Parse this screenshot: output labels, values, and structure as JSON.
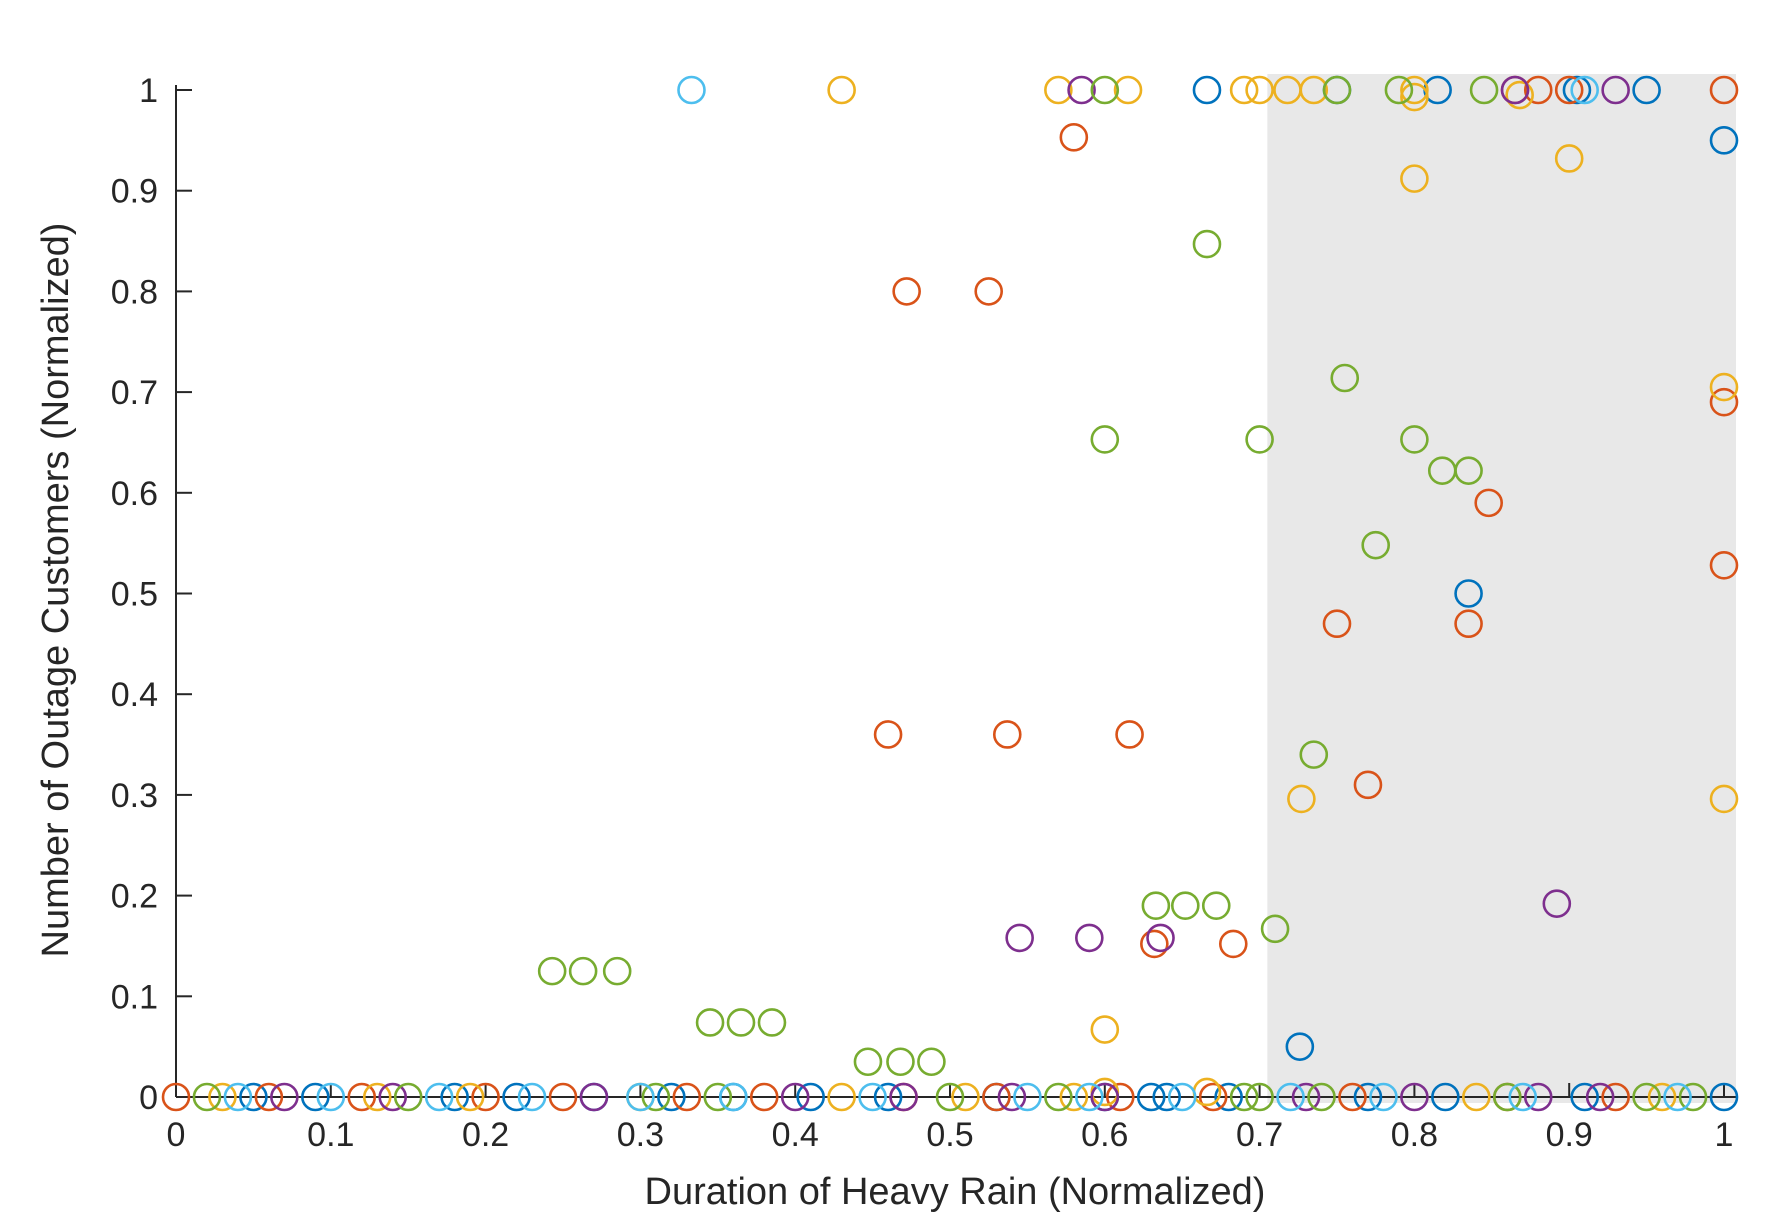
{
  "chart_data": {
    "type": "scatter",
    "title": "",
    "xlabel": "Duration of Heavy Rain (Normalized)",
    "ylabel": "Number of Outage Customers (Normalized)",
    "xlim": [
      0,
      1
    ],
    "ylim": [
      0,
      1
    ],
    "x_ticks": [
      "0",
      "0.1",
      "0.2",
      "0.3",
      "0.4",
      "0.5",
      "0.6",
      "0.7",
      "0.8",
      "0.9",
      "1"
    ],
    "y_ticks": [
      "0",
      "0.1",
      "0.2",
      "0.3",
      "0.4",
      "0.5",
      "0.6",
      "0.7",
      "0.8",
      "0.9",
      "1"
    ],
    "grid": false,
    "marker": "open-circle",
    "highlighted_x_range": [
      0.705,
      1.0
    ],
    "highlight_color": "#e8e8e8",
    "series": [
      {
        "color": "#0072BD",
        "points": [
          [
            0.05,
            0
          ],
          [
            0.09,
            0
          ],
          [
            0.18,
            0
          ],
          [
            0.22,
            0
          ],
          [
            0.27,
            0
          ],
          [
            0.32,
            0
          ],
          [
            0.36,
            0
          ],
          [
            0.41,
            0
          ],
          [
            0.46,
            0
          ],
          [
            0.53,
            0
          ],
          [
            0.6,
            0
          ],
          [
            0.63,
            0
          ],
          [
            0.64,
            0
          ],
          [
            0.68,
            0
          ],
          [
            0.77,
            0
          ],
          [
            0.82,
            0
          ],
          [
            0.91,
            0
          ],
          [
            1.0,
            0
          ],
          [
            0.666,
            1
          ],
          [
            0.75,
            1
          ],
          [
            0.815,
            1
          ],
          [
            0.905,
            1
          ],
          [
            0.95,
            1
          ],
          [
            1.0,
            0.95
          ],
          [
            0.835,
            0.5
          ],
          [
            0.726,
            0.05
          ]
        ]
      },
      {
        "color": "#D95319",
        "points": [
          [
            0.0,
            0
          ],
          [
            0.06,
            0
          ],
          [
            0.12,
            0
          ],
          [
            0.2,
            0
          ],
          [
            0.25,
            0
          ],
          [
            0.33,
            0
          ],
          [
            0.38,
            0
          ],
          [
            0.47,
            0
          ],
          [
            0.53,
            0
          ],
          [
            0.61,
            0
          ],
          [
            0.67,
            0
          ],
          [
            0.76,
            0
          ],
          [
            0.86,
            0
          ],
          [
            0.93,
            0
          ],
          [
            0.865,
            1
          ],
          [
            0.88,
            1
          ],
          [
            0.9,
            1
          ],
          [
            1.0,
            1
          ],
          [
            0.58,
            0.953
          ],
          [
            0.472,
            0.8
          ],
          [
            0.525,
            0.8
          ],
          [
            1.0,
            0.69
          ],
          [
            0.848,
            0.59
          ],
          [
            1.0,
            0.528
          ],
          [
            0.75,
            0.47
          ],
          [
            0.835,
            0.47
          ],
          [
            0.46,
            0.36
          ],
          [
            0.537,
            0.36
          ],
          [
            0.616,
            0.36
          ],
          [
            0.77,
            0.31
          ],
          [
            0.632,
            0.152
          ],
          [
            0.683,
            0.152
          ]
        ]
      },
      {
        "color": "#EDB120",
        "points": [
          [
            0.03,
            0
          ],
          [
            0.13,
            0
          ],
          [
            0.19,
            0
          ],
          [
            0.3,
            0
          ],
          [
            0.43,
            0
          ],
          [
            0.51,
            0
          ],
          [
            0.58,
            0
          ],
          [
            0.6,
            0.005
          ],
          [
            0.666,
            0.005
          ],
          [
            0.84,
            0
          ],
          [
            0.96,
            0
          ],
          [
            0.43,
            1
          ],
          [
            0.57,
            1
          ],
          [
            0.615,
            1
          ],
          [
            0.69,
            1
          ],
          [
            0.7,
            1
          ],
          [
            0.718,
            1
          ],
          [
            0.735,
            1
          ],
          [
            0.8,
            1
          ],
          [
            0.8,
            0.993
          ],
          [
            0.868,
            0.995
          ],
          [
            0.9,
            0.932
          ],
          [
            0.8,
            0.912
          ],
          [
            1.0,
            0.705
          ],
          [
            0.727,
            0.296
          ],
          [
            1.0,
            0.296
          ],
          [
            0.6,
            0.067
          ]
        ]
      },
      {
        "color": "#7E2F8E",
        "points": [
          [
            0.07,
            0
          ],
          [
            0.14,
            0
          ],
          [
            0.27,
            0
          ],
          [
            0.4,
            0
          ],
          [
            0.47,
            0
          ],
          [
            0.54,
            0
          ],
          [
            0.6,
            0
          ],
          [
            0.73,
            0
          ],
          [
            0.8,
            0
          ],
          [
            0.88,
            0
          ],
          [
            0.92,
            0
          ],
          [
            0.585,
            1
          ],
          [
            0.865,
            1
          ],
          [
            0.93,
            1
          ],
          [
            0.892,
            0.192
          ],
          [
            0.545,
            0.158
          ],
          [
            0.59,
            0.158
          ],
          [
            0.636,
            0.158
          ]
        ]
      },
      {
        "color": "#77AC30",
        "points": [
          [
            0.02,
            0
          ],
          [
            0.15,
            0
          ],
          [
            0.31,
            0
          ],
          [
            0.35,
            0
          ],
          [
            0.5,
            0
          ],
          [
            0.57,
            0
          ],
          [
            0.69,
            0
          ],
          [
            0.7,
            0
          ],
          [
            0.74,
            0
          ],
          [
            0.86,
            0
          ],
          [
            0.95,
            0
          ],
          [
            0.98,
            0
          ],
          [
            0.6,
            1
          ],
          [
            0.75,
            1
          ],
          [
            0.79,
            1
          ],
          [
            0.845,
            1
          ],
          [
            0.666,
            0.847
          ],
          [
            0.755,
            0.714
          ],
          [
            0.6,
            0.653
          ],
          [
            0.7,
            0.653
          ],
          [
            0.8,
            0.653
          ],
          [
            0.818,
            0.622
          ],
          [
            0.835,
            0.622
          ],
          [
            0.775,
            0.548
          ],
          [
            0.735,
            0.34
          ],
          [
            0.633,
            0.19
          ],
          [
            0.652,
            0.19
          ],
          [
            0.672,
            0.19
          ],
          [
            0.71,
            0.167
          ],
          [
            0.243,
            0.125
          ],
          [
            0.263,
            0.125
          ],
          [
            0.285,
            0.125
          ],
          [
            0.345,
            0.074
          ],
          [
            0.365,
            0.074
          ],
          [
            0.385,
            0.074
          ],
          [
            0.447,
            0.035
          ],
          [
            0.468,
            0.035
          ],
          [
            0.488,
            0.035
          ]
        ]
      },
      {
        "color": "#4DBEEE",
        "points": [
          [
            0.04,
            0
          ],
          [
            0.1,
            0
          ],
          [
            0.17,
            0
          ],
          [
            0.23,
            0
          ],
          [
            0.3,
            0
          ],
          [
            0.36,
            0
          ],
          [
            0.45,
            0
          ],
          [
            0.55,
            0
          ],
          [
            0.59,
            0
          ],
          [
            0.65,
            0
          ],
          [
            0.72,
            0
          ],
          [
            0.78,
            0
          ],
          [
            0.87,
            0
          ],
          [
            0.97,
            0
          ],
          [
            0.333,
            1
          ],
          [
            0.91,
            1
          ]
        ]
      }
    ]
  }
}
